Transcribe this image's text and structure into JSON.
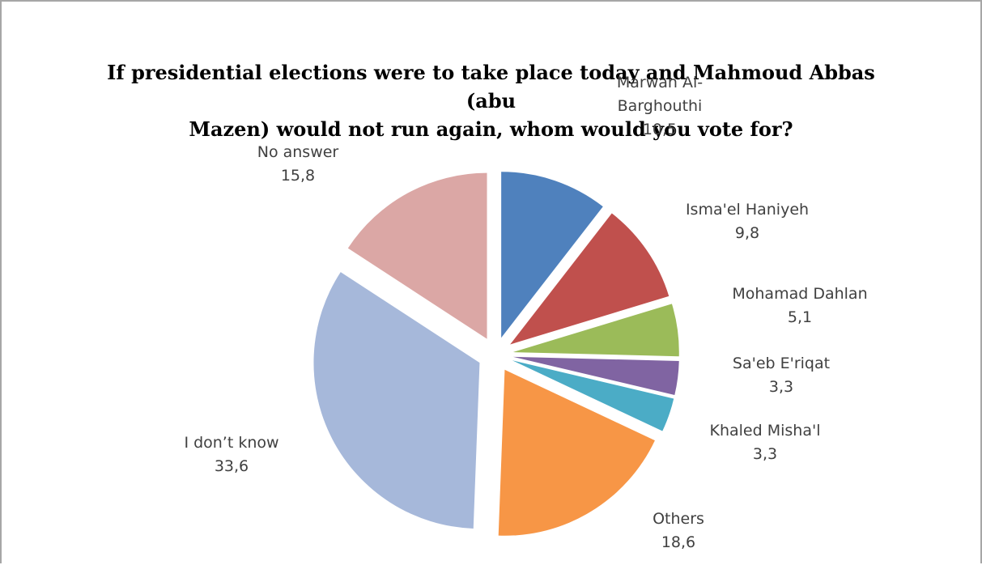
{
  "chart_data": {
    "type": "pie",
    "title_lines": [
      "If presidential elections were to take place today and Mahmoud Abbas (abu",
      "Mazen) would not run again, whom would you vote for?"
    ],
    "slices": [
      {
        "label_lines": [
          "Marwan Al-",
          "Barghouthi"
        ],
        "value": 10.5,
        "value_text": "10,5",
        "color": "#4f81bd"
      },
      {
        "label_lines": [
          "Isma'el Haniyeh"
        ],
        "value": 9.8,
        "value_text": "9,8",
        "color": "#c0504d"
      },
      {
        "label_lines": [
          "Mohamad Dahlan"
        ],
        "value": 5.1,
        "value_text": "5,1",
        "color": "#9bbb59"
      },
      {
        "label_lines": [
          "Sa'eb E'riqat"
        ],
        "value": 3.3,
        "value_text": "3,3",
        "color": "#8064a2"
      },
      {
        "label_lines": [
          "Khaled Misha'l"
        ],
        "value": 3.3,
        "value_text": "3,3",
        "color": "#4bacc6"
      },
      {
        "label_lines": [
          "Others"
        ],
        "value": 18.6,
        "value_text": "18,6",
        "color": "#f79646"
      },
      {
        "label_lines": [
          "I don’t know"
        ],
        "value": 33.6,
        "value_text": "33,6",
        "color": "#a6b8da"
      },
      {
        "label_lines": [
          "No answer"
        ],
        "value": 15.8,
        "value_text": "15,8",
        "color": "#dba7a5"
      }
    ]
  }
}
